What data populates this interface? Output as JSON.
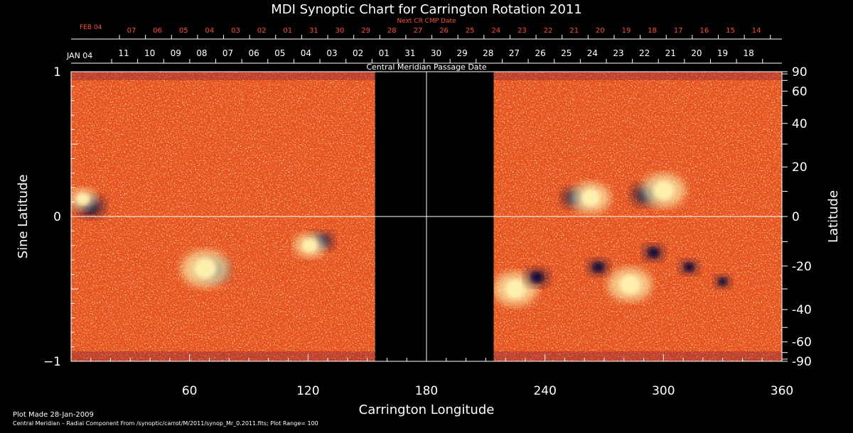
{
  "chart_data": {
    "type": "heatmap",
    "title": "MDI Synoptic Chart for Carrington Rotation 2011",
    "xlabel": "Carrington Longitude",
    "ylabel_left": "Sine Latitude",
    "ylabel_right": "Latitude",
    "xlim": [
      0,
      360
    ],
    "ylim": [
      -1,
      1
    ],
    "x_ticks": [
      60,
      120,
      180,
      240,
      300,
      360
    ],
    "y_left_ticks": [
      {
        "value": 1,
        "label": "1"
      },
      {
        "value": 0,
        "label": "0"
      },
      {
        "value": -1,
        "label": "−1"
      }
    ],
    "y_right_ticks": [
      90,
      60,
      40,
      20,
      0,
      -20,
      -40,
      -60,
      -90
    ],
    "top_axis_label": "Central Meridian Passage Date",
    "top_axis_dates": [
      "11",
      "10",
      "09",
      "08",
      "07",
      "06",
      "05",
      "04",
      "03",
      "02",
      "01",
      "31",
      "30",
      "29",
      "28",
      "27",
      "26",
      "25",
      "24",
      "23",
      "22",
      "21",
      "20",
      "19",
      "18"
    ],
    "top_axis_start_label": "JAN 04",
    "next_cr_label": "Next CR CMP Date",
    "next_cr_start_label": "FEB 04",
    "next_cr_dates": [
      "07",
      "06",
      "05",
      "04",
      "03",
      "02",
      "01",
      "31",
      "30",
      "29",
      "28",
      "27",
      "26",
      "25",
      "24",
      "23",
      "22",
      "21",
      "20",
      "19",
      "18",
      "17",
      "16",
      "15",
      "14"
    ],
    "data_gap_longitude": [
      154,
      214
    ],
    "colors": {
      "background": "#000000",
      "field": "#e8521a",
      "positive": "#fff2b0",
      "negative": "#14103a",
      "next_cr": "#ff4b2b",
      "axes": "#ffffff"
    },
    "active_regions": [
      {
        "lon": 10,
        "sinlat": 0.07,
        "polarity": "negative",
        "strength": 0.9
      },
      {
        "lon": 6,
        "sinlat": 0.12,
        "polarity": "positive",
        "strength": 0.5
      },
      {
        "lon": 72,
        "sinlat": -0.37,
        "polarity": "negative",
        "strength": 1.0
      },
      {
        "lon": 68,
        "sinlat": -0.36,
        "polarity": "positive",
        "strength": 1.0
      },
      {
        "lon": 127,
        "sinlat": -0.17,
        "polarity": "negative",
        "strength": 0.7
      },
      {
        "lon": 121,
        "sinlat": -0.2,
        "polarity": "positive",
        "strength": 0.6
      },
      {
        "lon": 255,
        "sinlat": 0.13,
        "polarity": "negative",
        "strength": 0.8
      },
      {
        "lon": 263,
        "sinlat": 0.13,
        "polarity": "positive",
        "strength": 0.8
      },
      {
        "lon": 291,
        "sinlat": 0.15,
        "polarity": "negative",
        "strength": 0.9
      },
      {
        "lon": 300,
        "sinlat": 0.18,
        "polarity": "positive",
        "strength": 0.9
      },
      {
        "lon": 225,
        "sinlat": -0.5,
        "polarity": "positive",
        "strength": 0.9
      },
      {
        "lon": 236,
        "sinlat": -0.42,
        "polarity": "negative",
        "strength": 0.7
      },
      {
        "lon": 267,
        "sinlat": -0.35,
        "polarity": "negative",
        "strength": 0.6
      },
      {
        "lon": 283,
        "sinlat": -0.47,
        "polarity": "positive",
        "strength": 0.9
      },
      {
        "lon": 295,
        "sinlat": -0.25,
        "polarity": "negative",
        "strength": 0.6
      },
      {
        "lon": 313,
        "sinlat": -0.35,
        "polarity": "negative",
        "strength": 0.5
      },
      {
        "lon": 330,
        "sinlat": -0.45,
        "polarity": "negative",
        "strength": 0.4
      }
    ]
  },
  "footer": {
    "plot_made": "Plot Made 28-Jan-2009",
    "note": "Central Meridian – Radial Component From /synoptic/carrot/M/2011/synop_Mr_0.2011.fits; Plot Range=  100"
  }
}
